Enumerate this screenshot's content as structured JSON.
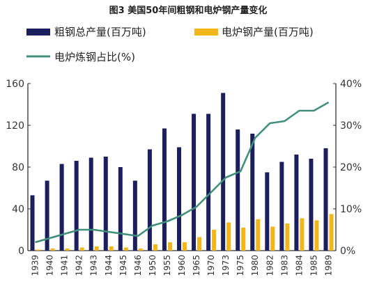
{
  "chart_data": {
    "type": "bar",
    "title": "图3  美国50年间粗钢和电炉钢产量变化",
    "categories": [
      "1939",
      "1940",
      "1941",
      "1942",
      "1943",
      "1944",
      "1945",
      "1946",
      "1950",
      "1955",
      "1960",
      "1965",
      "1970",
      "1973",
      "1975",
      "1980",
      "1982",
      "1983",
      "1984",
      "1985",
      "1989"
    ],
    "series": [
      {
        "name": "粗钢总产量(百万吨)",
        "kind": "bar",
        "axis": "left",
        "color": "#1c1f5e",
        "values": [
          53,
          67,
          83,
          86,
          89,
          90,
          80,
          67,
          97,
          117,
          99,
          131,
          131,
          151,
          116,
          112,
          75,
          85,
          92,
          88,
          98
        ]
      },
      {
        "name": "电炉钢产量(百万吨)",
        "kind": "bar",
        "axis": "left",
        "color": "#f2b619",
        "values": [
          1,
          2,
          2,
          3,
          4,
          4,
          3,
          2,
          6,
          8,
          8,
          13,
          20,
          27,
          22,
          30,
          23,
          26,
          31,
          29,
          35
        ]
      },
      {
        "name": "电炉炼钢占比(%)",
        "kind": "line",
        "axis": "right",
        "color": "#3f8f7a",
        "values": [
          2,
          3,
          4,
          5,
          5,
          4.5,
          4,
          3.5,
          6,
          7,
          8.5,
          10.5,
          14,
          17.5,
          19,
          27,
          30.5,
          31,
          33.5,
          33.5,
          35.5
        ]
      }
    ],
    "y_left": {
      "min": 0,
      "max": 160,
      "ticks": [
        "0",
        "40",
        "80",
        "120",
        "160"
      ]
    },
    "y_right": {
      "min": 0,
      "max": 40,
      "ticks": [
        "0%",
        "10%",
        "20%",
        "30%",
        "40%"
      ]
    },
    "legend": "top"
  }
}
